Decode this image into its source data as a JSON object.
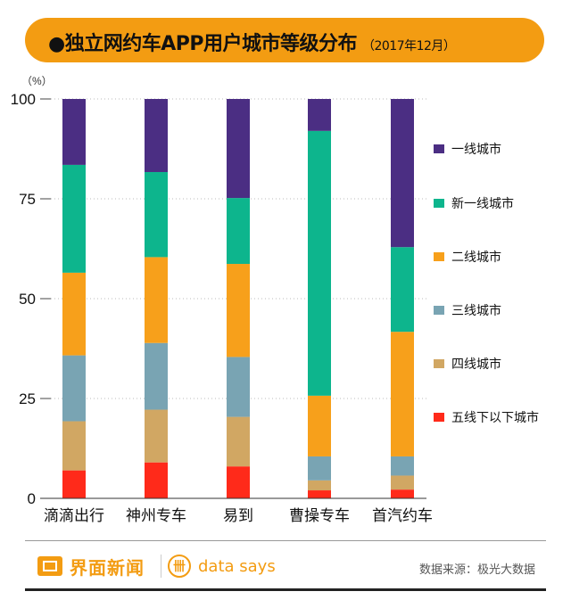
{
  "title": {
    "main": "●独立网约车APP用户城市等级分布",
    "sub": "（2017年12月）"
  },
  "chart_data": {
    "type": "bar",
    "stacked": true,
    "unit_label": "（%）",
    "ylim": [
      0,
      100
    ],
    "yticks": [
      0,
      25,
      50,
      75,
      100
    ],
    "categories": [
      "滴滴出行",
      "神州专车",
      "易到",
      "曹操专车",
      "首汽约车"
    ],
    "series": [
      {
        "name": "五线下以下城市",
        "color": "#ff2a1a",
        "values": [
          7,
          9,
          8,
          2,
          2.2
        ]
      },
      {
        "name": "四线城市",
        "color": "#d1a763",
        "values": [
          12.3,
          13.2,
          12.4,
          2.5,
          3.5
        ]
      },
      {
        "name": "三线城市",
        "color": "#79a4b3",
        "values": [
          16.5,
          16.7,
          15,
          6,
          4.8
        ]
      },
      {
        "name": "二线城市",
        "color": "#f7a01b",
        "values": [
          20.7,
          21.5,
          23.3,
          15.2,
          31.2
        ]
      },
      {
        "name": "新一线城市",
        "color": "#0db58d",
        "values": [
          27,
          21.3,
          16.5,
          66.3,
          21.2
        ]
      },
      {
        "name": "一线城市",
        "color": "#4b2e83",
        "values": [
          16.5,
          18.3,
          24.8,
          8,
          37.1
        ]
      }
    ],
    "legend_order": [
      "一线城市",
      "新一线城市",
      "二线城市",
      "三线城市",
      "四线城市",
      "五线下以下城市"
    ],
    "legend_position": "right"
  },
  "footer": {
    "brand": "界面新闻",
    "ds_mark": "卌",
    "ds": "data says",
    "source": "数据来源：极光大数据"
  }
}
